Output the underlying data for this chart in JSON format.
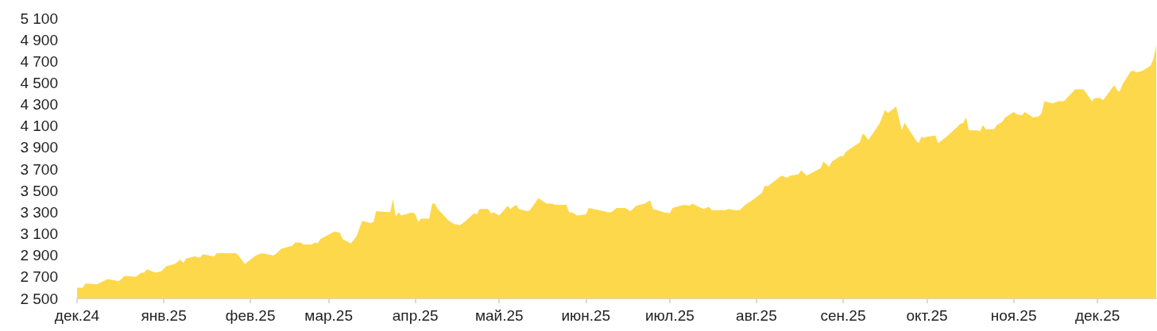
{
  "chart_data": {
    "type": "area",
    "color": "#fdd84a",
    "x": [
      "2024-12-01",
      "2024-12-03",
      "2024-12-04",
      "2024-12-08",
      "2024-12-12",
      "2024-12-16",
      "2024-12-18",
      "2024-12-22",
      "2024-12-24",
      "2024-12-25",
      "2024-12-26",
      "2024-12-29",
      "2024-12-31",
      "2025-01-02",
      "2025-01-05",
      "2025-01-07",
      "2025-01-08",
      "2025-01-09",
      "2025-01-12",
      "2025-01-14",
      "2025-01-15",
      "2025-01-19",
      "2025-01-20",
      "2025-01-27",
      "2025-01-28",
      "2025-01-30",
      "2025-02-03",
      "2025-02-05",
      "2025-02-09",
      "2025-02-10",
      "2025-02-12",
      "2025-02-16",
      "2025-02-17",
      "2025-02-19",
      "2025-02-20",
      "2025-02-23",
      "2025-02-24",
      "2025-02-25",
      "2025-02-26",
      "2025-03-03",
      "2025-03-05",
      "2025-03-06",
      "2025-03-09",
      "2025-03-11",
      "2025-03-13",
      "2025-03-16",
      "2025-03-17",
      "2025-03-18",
      "2025-03-23",
      "2025-03-24",
      "2025-03-25",
      "2025-03-26",
      "2025-03-27",
      "2025-03-31",
      "2025-04-01",
      "2025-04-02",
      "2025-04-03",
      "2025-04-06",
      "2025-04-07",
      "2025-04-08",
      "2025-04-09",
      "2025-04-13",
      "2025-04-15",
      "2025-04-17",
      "2025-04-19",
      "2025-04-22",
      "2025-04-23",
      "2025-04-24",
      "2025-04-27",
      "2025-04-28",
      "2025-04-29",
      "2025-05-01",
      "2025-05-04",
      "2025-05-05",
      "2025-05-07",
      "2025-05-08",
      "2025-05-11",
      "2025-05-12",
      "2025-05-15",
      "2025-05-18",
      "2025-05-20",
      "2025-05-21",
      "2025-05-25",
      "2025-05-26",
      "2025-05-27",
      "2025-05-29",
      "2025-06-01",
      "2025-06-02",
      "2025-06-09",
      "2025-06-10",
      "2025-06-12",
      "2025-06-15",
      "2025-06-17",
      "2025-06-19",
      "2025-06-22",
      "2025-06-24",
      "2025-06-25",
      "2025-06-29",
      "2025-07-01",
      "2025-07-02",
      "2025-07-06",
      "2025-07-08",
      "2025-07-09",
      "2025-07-13",
      "2025-07-15",
      "2025-07-16",
      "2025-07-21",
      "2025-07-22",
      "2025-07-24",
      "2025-07-26",
      "2025-07-28",
      "2025-07-31",
      "2025-08-03",
      "2025-08-04",
      "2025-08-05",
      "2025-08-07",
      "2025-08-10",
      "2025-08-12",
      "2025-08-13",
      "2025-08-16",
      "2025-08-17",
      "2025-08-19",
      "2025-08-24",
      "2025-08-25",
      "2025-08-27",
      "2025-08-28",
      "2025-08-31",
      "2025-09-01",
      "2025-09-02",
      "2025-09-03",
      "2025-09-07",
      "2025-09-08",
      "2025-09-09",
      "2025-09-10",
      "2025-09-14",
      "2025-09-16",
      "2025-09-17",
      "2025-09-20",
      "2025-09-22",
      "2025-09-23",
      "2025-09-27",
      "2025-09-28",
      "2025-09-29",
      "2025-09-30",
      "2025-10-01",
      "2025-10-04",
      "2025-10-05",
      "2025-10-07",
      "2025-10-08",
      "2025-10-13",
      "2025-10-14",
      "2025-10-15",
      "2025-10-16",
      "2025-10-19",
      "2025-10-20",
      "2025-10-21",
      "2025-10-22",
      "2025-10-25",
      "2025-10-26",
      "2025-10-28",
      "2025-10-29",
      "2025-11-01",
      "2025-11-02",
      "2025-11-04",
      "2025-11-05",
      "2025-11-08",
      "2025-11-10",
      "2025-11-11",
      "2025-11-12",
      "2025-11-15",
      "2025-11-17",
      "2025-11-19",
      "2025-11-23",
      "2025-11-26",
      "2025-11-29",
      "2025-11-30",
      "2025-12-02",
      "2025-12-03",
      "2025-12-07",
      "2025-12-08",
      "2025-12-09",
      "2025-12-10",
      "2025-12-13",
      "2025-12-14",
      "2025-12-15",
      "2025-12-17",
      "2025-12-20",
      "2025-12-21",
      "2025-12-22"
    ],
    "values": [
      2600,
      2600,
      2640,
      2630,
      2680,
      2660,
      2710,
      2700,
      2740,
      2740,
      2770,
      2740,
      2750,
      2800,
      2820,
      2860,
      2830,
      2870,
      2890,
      2880,
      2910,
      2890,
      2920,
      2920,
      2890,
      2820,
      2900,
      2920,
      2900,
      2910,
      2960,
      2990,
      3020,
      3020,
      3000,
      3000,
      3020,
      3010,
      3050,
      3120,
      3110,
      3050,
      3010,
      3080,
      3220,
      3200,
      3210,
      3310,
      3300,
      3420,
      3260,
      3300,
      3270,
      3300,
      3280,
      3210,
      3240,
      3240,
      3380,
      3380,
      3330,
      3220,
      3190,
      3180,
      3220,
      3290,
      3280,
      3330,
      3330,
      3290,
      3300,
      3270,
      3360,
      3330,
      3370,
      3330,
      3310,
      3320,
      3430,
      3380,
      3380,
      3370,
      3370,
      3300,
      3300,
      3270,
      3280,
      3340,
      3300,
      3300,
      3340,
      3340,
      3310,
      3360,
      3380,
      3410,
      3330,
      3300,
      3290,
      3340,
      3370,
      3360,
      3380,
      3330,
      3350,
      3320,
      3320,
      3330,
      3320,
      3320,
      3370,
      3420,
      3480,
      3550,
      3540,
      3580,
      3640,
      3620,
      3640,
      3650,
      3690,
      3640,
      3710,
      3770,
      3720,
      3770,
      3820,
      3820,
      3860,
      3880,
      3950,
      4030,
      4010,
      3970,
      4120,
      4250,
      4220,
      4280,
      4060,
      4130,
      3970,
      3940,
      4000,
      3990,
      4000,
      4010,
      3940,
      3980,
      4000,
      4120,
      4130,
      4180,
      4060,
      4060,
      4050,
      4110,
      4070,
      4070,
      4110,
      4140,
      4180,
      4230,
      4210,
      4200,
      4230,
      4180,
      4190,
      4220,
      4330,
      4310,
      4330,
      4330,
      4440,
      4440,
      4330,
      4360,
      4360,
      4340,
      4480,
      4430,
      4420,
      4490,
      4610,
      4610,
      4600,
      4610,
      4660,
      4720,
      4850
    ],
    "xlim": [
      "2024-12-01",
      "2025-12-22"
    ],
    "xticks": [
      {
        "value": "2024-12-01",
        "label": "дек.24"
      },
      {
        "value": "2025-01-01",
        "label": "янв.25"
      },
      {
        "value": "2025-02-01",
        "label": "фев.25"
      },
      {
        "value": "2025-03-01",
        "label": "мар.25"
      },
      {
        "value": "2025-04-01",
        "label": "апр.25"
      },
      {
        "value": "2025-05-01",
        "label": "май.25"
      },
      {
        "value": "2025-06-01",
        "label": "июн.25"
      },
      {
        "value": "2025-07-01",
        "label": "июл.25"
      },
      {
        "value": "2025-08-01",
        "label": "авг.25"
      },
      {
        "value": "2025-09-01",
        "label": "сен.25"
      },
      {
        "value": "2025-10-01",
        "label": "окт.25"
      },
      {
        "value": "2025-11-01",
        "label": "ноя.25"
      },
      {
        "value": "2025-12-01",
        "label": "дек.25"
      }
    ],
    "ylim": [
      2500,
      5100
    ],
    "yticks": [
      {
        "value": 2500,
        "label": "2 500"
      },
      {
        "value": 2700,
        "label": "2 700"
      },
      {
        "value": 2900,
        "label": "2 900"
      },
      {
        "value": 3100,
        "label": "3 100"
      },
      {
        "value": 3300,
        "label": "3 300"
      },
      {
        "value": 3500,
        "label": "3 500"
      },
      {
        "value": 3700,
        "label": "3 700"
      },
      {
        "value": 3900,
        "label": "3 900"
      },
      {
        "value": 4100,
        "label": "4 100"
      },
      {
        "value": 4300,
        "label": "4 300"
      },
      {
        "value": 4500,
        "label": "4 500"
      },
      {
        "value": 4700,
        "label": "4 700"
      },
      {
        "value": 4900,
        "label": "4 900"
      },
      {
        "value": 5100,
        "label": "5 100"
      }
    ],
    "marker": "none"
  }
}
